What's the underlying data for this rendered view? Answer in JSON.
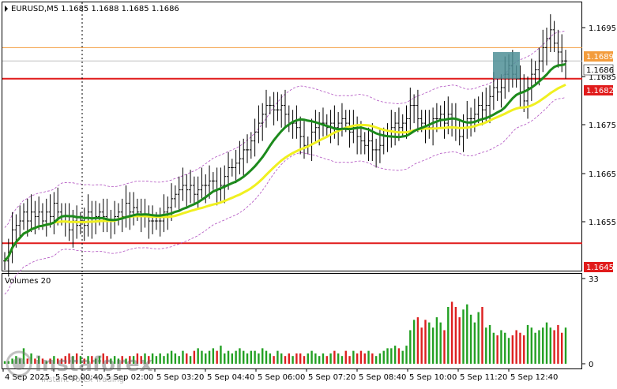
{
  "chart_header": {
    "symbol_line": "EURUSD,M5  1.1685  1.1688  1.1685  1.1686"
  },
  "price_axis": {
    "ticks": [
      "1.1695",
      "1.1685",
      "1.1675",
      "1.1665",
      "1.1655"
    ],
    "labels": [
      {
        "text": "1.1689",
        "bg": "#f39c3c",
        "fg": "#ffffff"
      },
      {
        "text": "1.1686",
        "bg": "#ffffff",
        "fg": "#000000"
      },
      {
        "text": "1.1682",
        "bg": "#e11b1b",
        "fg": "#ffffff"
      },
      {
        "text": "1.1645",
        "bg": "#e11b1b",
        "fg": "#ffffff"
      }
    ]
  },
  "volume_panel": {
    "title": "Volumes 20",
    "axis_ticks": [
      "33",
      "0"
    ]
  },
  "time_axis": {
    "labels": [
      "4 Sep 2025",
      "5 Sep 00:40",
      "5 Sep 02:00",
      "5 Sep 03:20",
      "5 Sep 04:40",
      "5 Sep 06:00",
      "5 Sep 07:20",
      "5 Sep 08:40",
      "5 Sep 10:00",
      "5 Sep 11:20",
      "5 Sep 12:40"
    ]
  },
  "watermark": {
    "brand": "instaforex",
    "tagline": "Instant Forex Trading"
  },
  "colors": {
    "orange_line": "#f39c3c",
    "red_line": "#e11b1b",
    "ma_green": "#1c8a1c",
    "ma_yellow": "#f0f020",
    "envelope": "#b050c0",
    "volume_green": "#23a023",
    "volume_red": "#dd2020",
    "highlight_box": "#4f8f96"
  },
  "chart_data": {
    "type": "candlestick",
    "ylim": [
      1.1639,
      1.1699
    ],
    "hlines": [
      1.1689,
      1.1682,
      1.1645
    ],
    "close": [
      1.1641,
      1.1643,
      1.1648,
      1.1649,
      1.165,
      1.1652,
      1.165,
      1.1652,
      1.1651,
      1.1652,
      1.165,
      1.1652,
      1.1651,
      1.1654,
      1.1652,
      1.1651,
      1.165,
      1.1648,
      1.165,
      1.1649,
      1.165,
      1.1649,
      1.1652,
      1.165,
      1.1651,
      1.1652,
      1.1651,
      1.165,
      1.165,
      1.1651,
      1.1652,
      1.1651,
      1.1654,
      1.1652,
      1.1653,
      1.1652,
      1.1651,
      1.1651,
      1.165,
      1.165,
      1.165,
      1.165,
      1.1652,
      1.1653,
      1.1655,
      1.1656,
      1.1657,
      1.1658,
      1.1657,
      1.1658,
      1.1656,
      1.1657,
      1.1658,
      1.1658,
      1.1659,
      1.1659,
      1.1657,
      1.1658,
      1.166,
      1.1662,
      1.1662,
      1.1663,
      1.1664,
      1.1666,
      1.1666,
      1.1668,
      1.167,
      1.1672,
      1.1674,
      1.1676,
      1.1676,
      1.1675,
      1.1675,
      1.1676,
      1.1674,
      1.1672,
      1.1672,
      1.1671,
      1.1669,
      1.1667,
      1.1667,
      1.167,
      1.1671,
      1.1672,
      1.1672,
      1.1671,
      1.1672,
      1.1671,
      1.1672,
      1.1673,
      1.1672,
      1.167,
      1.1671,
      1.1669,
      1.1668,
      1.1667,
      1.1668,
      1.1666,
      1.1666,
      1.1667,
      1.1669,
      1.1669,
      1.1671,
      1.1672,
      1.1671,
      1.1672,
      1.1673,
      1.1676,
      1.1676,
      1.1673,
      1.1672,
      1.1671,
      1.1671,
      1.1673,
      1.1673,
      1.1674,
      1.1672,
      1.1674,
      1.1673,
      1.1671,
      1.1669,
      1.1671,
      1.1673,
      1.1673,
      1.1674,
      1.1676,
      1.1675,
      1.1676,
      1.1678,
      1.168,
      1.1679,
      1.168,
      1.1683,
      1.1685,
      1.1683,
      1.1682,
      1.1679,
      1.1677,
      1.168,
      1.1683,
      1.1684,
      1.1686,
      1.1689,
      1.1691,
      1.1693,
      1.169,
      1.1688,
      1.1686,
      1.1686
    ],
    "volumes": [
      1,
      1,
      2,
      3,
      2,
      6,
      2,
      4,
      2,
      3,
      2,
      1,
      2,
      3,
      2,
      2,
      3,
      4,
      3,
      4,
      3,
      2,
      3,
      3,
      2,
      3,
      4,
      3,
      2,
      3,
      2,
      3,
      2,
      3,
      3,
      4,
      3,
      4,
      3,
      4,
      3,
      4,
      3,
      4,
      5,
      4,
      3,
      5,
      4,
      3,
      5,
      6,
      5,
      4,
      5,
      6,
      5,
      7,
      4,
      5,
      4,
      5,
      6,
      5,
      4,
      5,
      5,
      4,
      6,
      5,
      4,
      3,
      5,
      4,
      3,
      4,
      3,
      4,
      4,
      3,
      4,
      5,
      4,
      3,
      4,
      3,
      4,
      5,
      4,
      3,
      5,
      3,
      5,
      4,
      5,
      4,
      5,
      4,
      3,
      4,
      5,
      6,
      6,
      7,
      6,
      5,
      7,
      13,
      17,
      18,
      14,
      17,
      16,
      14,
      18,
      16,
      13,
      22,
      24,
      22,
      18,
      21,
      23,
      19,
      16,
      20,
      22,
      14,
      15,
      12,
      11,
      13,
      12,
      10,
      11,
      13,
      12,
      11,
      15,
      14,
      12,
      13,
      14,
      16,
      14,
      13,
      15,
      12,
      14
    ]
  }
}
